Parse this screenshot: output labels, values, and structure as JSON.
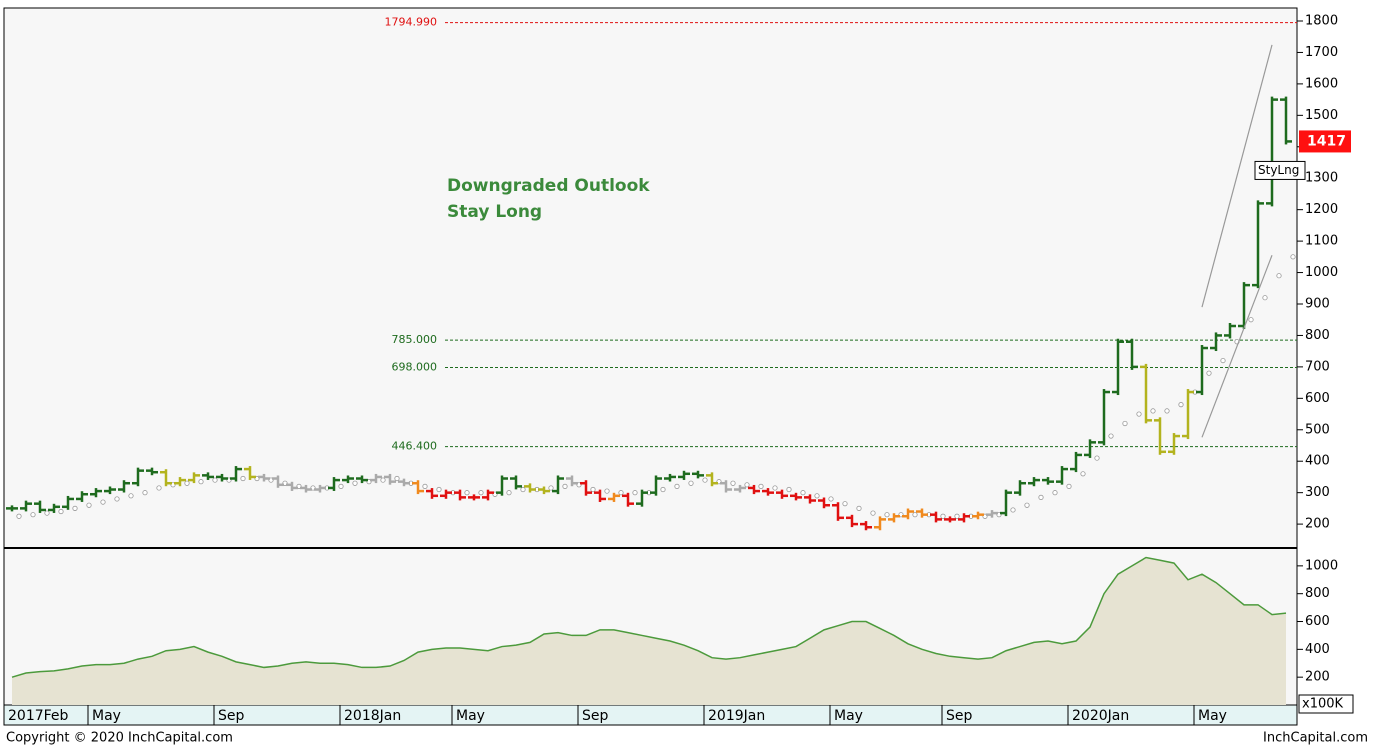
{
  "chart_data": [
    {
      "type": "stock",
      "ylim": [
        124,
        1835
      ],
      "yticks": [
        200,
        300,
        400,
        500,
        600,
        700,
        800,
        900,
        1000,
        1100,
        1200,
        1300,
        1400,
        1500,
        1600,
        1700,
        1800
      ],
      "values": [
        250,
        265,
        245,
        255,
        280,
        295,
        305,
        310,
        330,
        370,
        365,
        330,
        340,
        355,
        350,
        345,
        375,
        350,
        345,
        325,
        315,
        310,
        315,
        340,
        345,
        340,
        350,
        335,
        330,
        305,
        290,
        300,
        285,
        285,
        300,
        345,
        320,
        310,
        305,
        345,
        330,
        300,
        280,
        290,
        265,
        300,
        345,
        350,
        360,
        355,
        330,
        310,
        315,
        305,
        300,
        290,
        285,
        275,
        260,
        220,
        200,
        190,
        215,
        225,
        240,
        230,
        215,
        215,
        225,
        230,
        235,
        300,
        330,
        340,
        335,
        375,
        420,
        460,
        620,
        780,
        700,
        530,
        430,
        480,
        620,
        760,
        800,
        830,
        960,
        1220,
        1550,
        1417
      ],
      "bar_colors": [
        "#1e6b1e",
        "#1e6b1e",
        "#1e6b1e",
        "#1e6b1e",
        "#1e6b1e",
        "#1e6b1e",
        "#1e6b1e",
        "#1e6b1e",
        "#1e6b1e",
        "#1e6b1e",
        "#1e6b1e",
        "#b3b31e",
        "#b3b31e",
        "#b3b31e",
        "#1e6b1e",
        "#1e6b1e",
        "#1e6b1e",
        "#b3b31e",
        "#aaaaaa",
        "#aaaaaa",
        "#aaaaaa",
        "#aaaaaa",
        "#aaaaaa",
        "#1e6b1e",
        "#1e6b1e",
        "#1e6b1e",
        "#aaaaaa",
        "#aaaaaa",
        "#aaaaaa",
        "#f08a1e",
        "#e01010",
        "#e01010",
        "#e01010",
        "#e01010",
        "#e01010",
        "#1e6b1e",
        "#1e6b1e",
        "#b3b31e",
        "#b3b31e",
        "#1e6b1e",
        "#aaaaaa",
        "#e01010",
        "#e01010",
        "#f08a1e",
        "#e01010",
        "#1e6b1e",
        "#1e6b1e",
        "#1e6b1e",
        "#1e6b1e",
        "#1e6b1e",
        "#b3b31e",
        "#aaaaaa",
        "#aaaaaa",
        "#e01010",
        "#e01010",
        "#e01010",
        "#e01010",
        "#e01010",
        "#e01010",
        "#e01010",
        "#e01010",
        "#e01010",
        "#f08a1e",
        "#f08a1e",
        "#f08a1e",
        "#f08a1e",
        "#e01010",
        "#e01010",
        "#e01010",
        "#f08a1e",
        "#aaaaaa",
        "#1e6b1e",
        "#1e6b1e",
        "#1e6b1e",
        "#1e6b1e",
        "#1e6b1e",
        "#1e6b1e",
        "#1e6b1e",
        "#1e6b1e",
        "#1e6b1e",
        "#1e6b1e",
        "#b3b31e",
        "#b3b31e",
        "#b3b31e",
        "#b3b31e",
        "#1e6b1e",
        "#1e6b1e",
        "#1e6b1e",
        "#1e6b1e",
        "#1e6b1e",
        "#1e6b1e",
        "#1e6b1e"
      ],
      "stops": [
        225,
        230,
        235,
        240,
        250,
        260,
        270,
        280,
        290,
        300,
        315,
        325,
        330,
        335,
        340,
        340,
        345,
        345,
        340,
        330,
        320,
        315,
        315,
        320,
        330,
        335,
        340,
        345,
        330,
        320,
        310,
        300,
        300,
        300,
        295,
        300,
        310,
        310,
        315,
        320,
        325,
        310,
        305,
        300,
        300,
        300,
        310,
        320,
        330,
        340,
        335,
        330,
        325,
        320,
        315,
        310,
        300,
        290,
        280,
        265,
        250,
        235,
        230,
        230,
        230,
        230,
        225,
        225,
        225,
        225,
        230,
        245,
        260,
        285,
        300,
        320,
        360,
        410,
        480,
        520,
        550,
        560,
        560,
        580,
        620,
        680,
        720,
        780,
        850,
        920,
        990,
        1050
      ],
      "levels": [
        {
          "value": 1794.99,
          "label": "1794.990",
          "color": "#e01010"
        },
        {
          "value": 785,
          "label": "785.000",
          "color": "#1e6b1e"
        },
        {
          "value": 698,
          "label": "698.000",
          "color": "#1e6b1e"
        },
        {
          "value": 446.4,
          "label": "446.400",
          "color": "#1e6b1e"
        }
      ],
      "trendlines": [
        {
          "from": [
            85,
            890
          ],
          "to": [
            90,
            1724
          ]
        },
        {
          "from": [
            85,
            476
          ],
          "to": [
            90,
            1055
          ]
        }
      ],
      "annotations": [
        "Downgraded Outlook",
        "Stay Long"
      ],
      "last_price": 1417,
      "tag": "StyLng"
    },
    {
      "type": "area",
      "ylim": [
        0,
        1114
      ],
      "yticks": [
        200,
        400,
        600,
        800,
        1000
      ],
      "unit_label": "x100K",
      "color": "#e6e3d2",
      "values": [
        200,
        230,
        240,
        245,
        260,
        280,
        290,
        290,
        300,
        330,
        350,
        390,
        400,
        420,
        380,
        350,
        310,
        290,
        270,
        280,
        300,
        310,
        300,
        300,
        290,
        270,
        270,
        280,
        320,
        380,
        400,
        410,
        410,
        400,
        390,
        420,
        430,
        450,
        510,
        520,
        500,
        500,
        540,
        540,
        520,
        500,
        480,
        460,
        430,
        390,
        340,
        330,
        340,
        360,
        380,
        400,
        420,
        480,
        540,
        570,
        600,
        600,
        550,
        500,
        440,
        400,
        370,
        350,
        340,
        330,
        340,
        390,
        420,
        450,
        460,
        440,
        460,
        560,
        800,
        940,
        1000,
        1060,
        1040,
        1020,
        900,
        940,
        880,
        800,
        720,
        720,
        650,
        660
      ],
      "categories": [
        "2017Feb",
        null,
        null,
        null,
        null,
        null,
        "May",
        null,
        null,
        null,
        null,
        null,
        null,
        null,
        null,
        "Sep",
        null,
        null,
        null,
        null,
        null,
        null,
        null,
        null,
        "2018Jan",
        null,
        null,
        null,
        null,
        null,
        null,
        null,
        "May",
        null,
        null,
        null,
        null,
        null,
        null,
        null,
        null,
        "Sep",
        null,
        null,
        null,
        null,
        null,
        null,
        null,
        null,
        "2019Jan",
        null,
        null,
        null,
        null,
        null,
        null,
        null,
        null,
        "May",
        null,
        null,
        null,
        null,
        null,
        null,
        null,
        "Sep",
        null,
        null,
        null,
        null,
        null,
        null,
        null,
        null,
        "2020Jan",
        null,
        null,
        null,
        null,
        null,
        null,
        null,
        null,
        "May",
        null,
        null,
        null,
        null,
        null,
        null
      ]
    }
  ],
  "footer": {
    "left": "Copyright © 2020 InchCapital.com",
    "right": "InchCapital.com"
  }
}
